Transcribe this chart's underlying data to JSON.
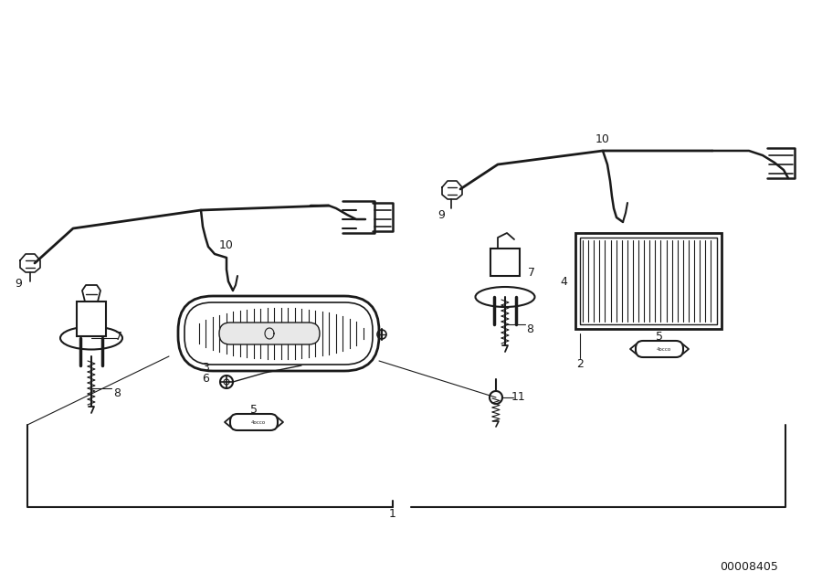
{
  "bg_color": "#ffffff",
  "line_color": "#1a1a1a",
  "diagram_id": "00008405",
  "figsize": [
    9.0,
    6.37
  ],
  "dpi": 100
}
